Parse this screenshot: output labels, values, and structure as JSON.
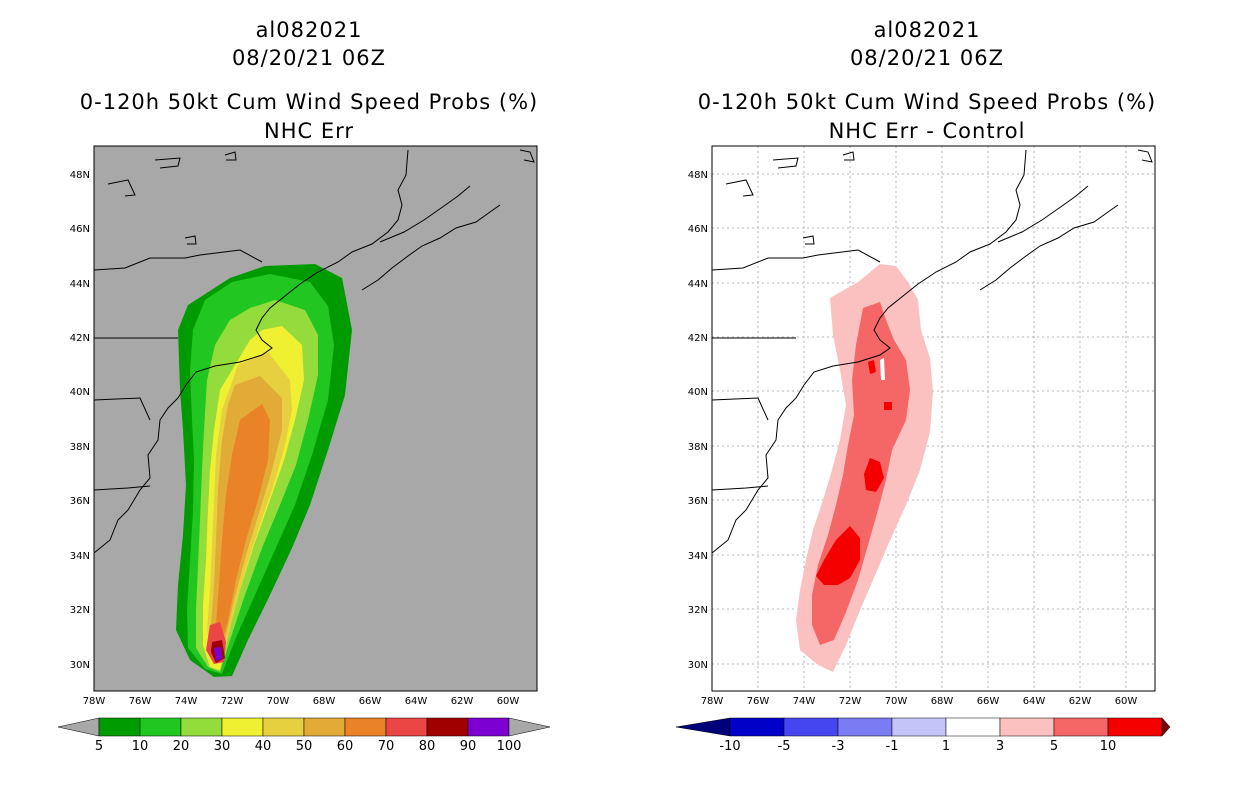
{
  "panels": [
    {
      "storm_id": "al082021",
      "datetime": "08/20/21 06Z",
      "title": "0-120h 50kt Cum Wind Speed Probs (%)",
      "subtitle": "NHC Err",
      "background_color": "#a8a8a8",
      "colorbar": {
        "labels": [
          "5",
          "10",
          "20",
          "30",
          "40",
          "50",
          "60",
          "70",
          "80",
          "90",
          "100"
        ],
        "colors": [
          "#009b00",
          "#21c621",
          "#94dc3c",
          "#f0f032",
          "#e6d040",
          "#e2aa36",
          "#ea8228",
          "#ea4646",
          "#a00000",
          "#7d00d2"
        ],
        "end_color": "#a8a8a8"
      }
    },
    {
      "storm_id": "al082021",
      "datetime": "08/20/21 06Z",
      "title": "0-120h 50kt Cum Wind Speed Probs (%)",
      "subtitle": "NHC Err - Control",
      "background_color": "#ffffff",
      "colorbar": {
        "labels": [
          "-10",
          "-5",
          "-3",
          "-1",
          "1",
          "3",
          "5",
          "10"
        ],
        "colors": [
          "#0000c8",
          "#4646f0",
          "#7b7bf4",
          "#c4c4f8",
          "#ffffff",
          "#fbc0c0",
          "#f56666",
          "#f50000"
        ],
        "left_end_color": "#00007a",
        "right_end_color": "#7d0000"
      }
    }
  ],
  "axes": {
    "lat_labels": [
      "48N",
      "46N",
      "44N",
      "42N",
      "40N",
      "38N",
      "36N",
      "34N",
      "32N",
      "30N"
    ],
    "lon_labels": [
      "78W",
      "76W",
      "74W",
      "72W",
      "70W",
      "68W",
      "66W",
      "64W",
      "62W",
      "60W"
    ]
  }
}
